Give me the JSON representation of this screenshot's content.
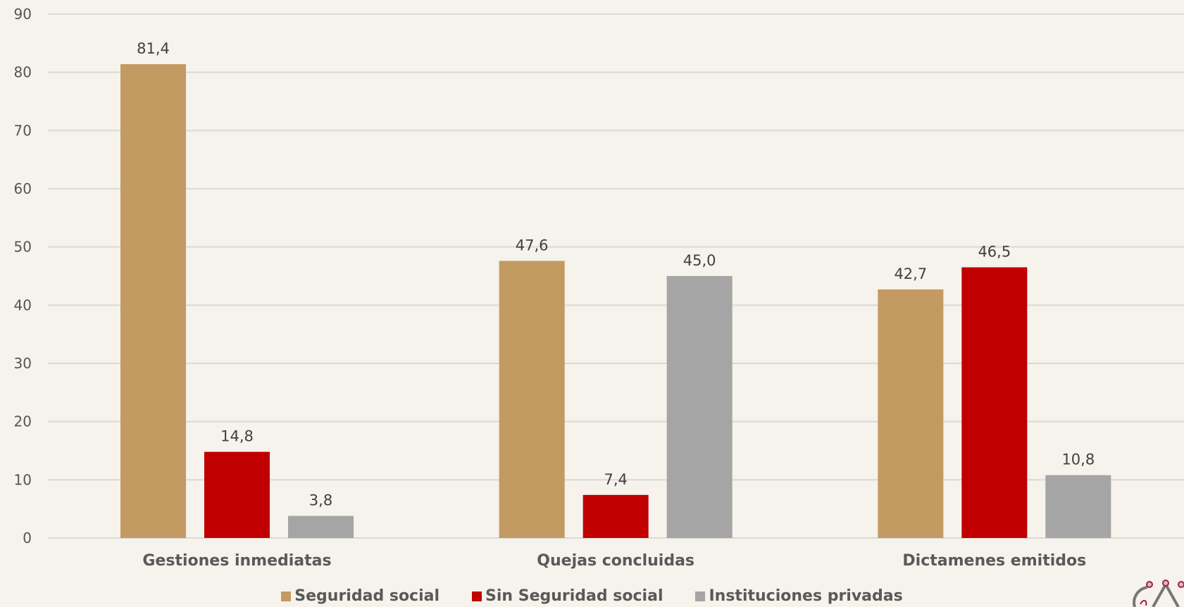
{
  "chart_data": {
    "type": "bar",
    "title": "",
    "xlabel": "",
    "ylabel": "",
    "ylim": [
      0,
      90
    ],
    "yticks": [
      0,
      10,
      20,
      30,
      40,
      50,
      60,
      70,
      80,
      90
    ],
    "grid": true,
    "legend_position": "bottom",
    "categories": [
      "Gestiones inmediatas",
      "Quejas concluidas",
      "Dictamenes emitidos"
    ],
    "series": [
      {
        "name": "Seguridad social",
        "color": "#c39a62",
        "values": [
          81.4,
          47.6,
          42.7
        ],
        "labels": [
          "81,4",
          "47,6",
          "42,7"
        ]
      },
      {
        "name": "Sin Seguridad social",
        "color": "#c00000",
        "values": [
          14.8,
          7.4,
          46.5
        ],
        "labels": [
          "14,8",
          "7,4",
          "46,5"
        ]
      },
      {
        "name": "Instituciones privadas",
        "color": "#a5a5a5",
        "values": [
          3.8,
          45.0,
          10.8
        ],
        "labels": [
          "3,8",
          "45,0",
          "10,8"
        ]
      }
    ]
  },
  "logo": {
    "icon": "institution-logo-icon",
    "color": "#9b2247"
  }
}
